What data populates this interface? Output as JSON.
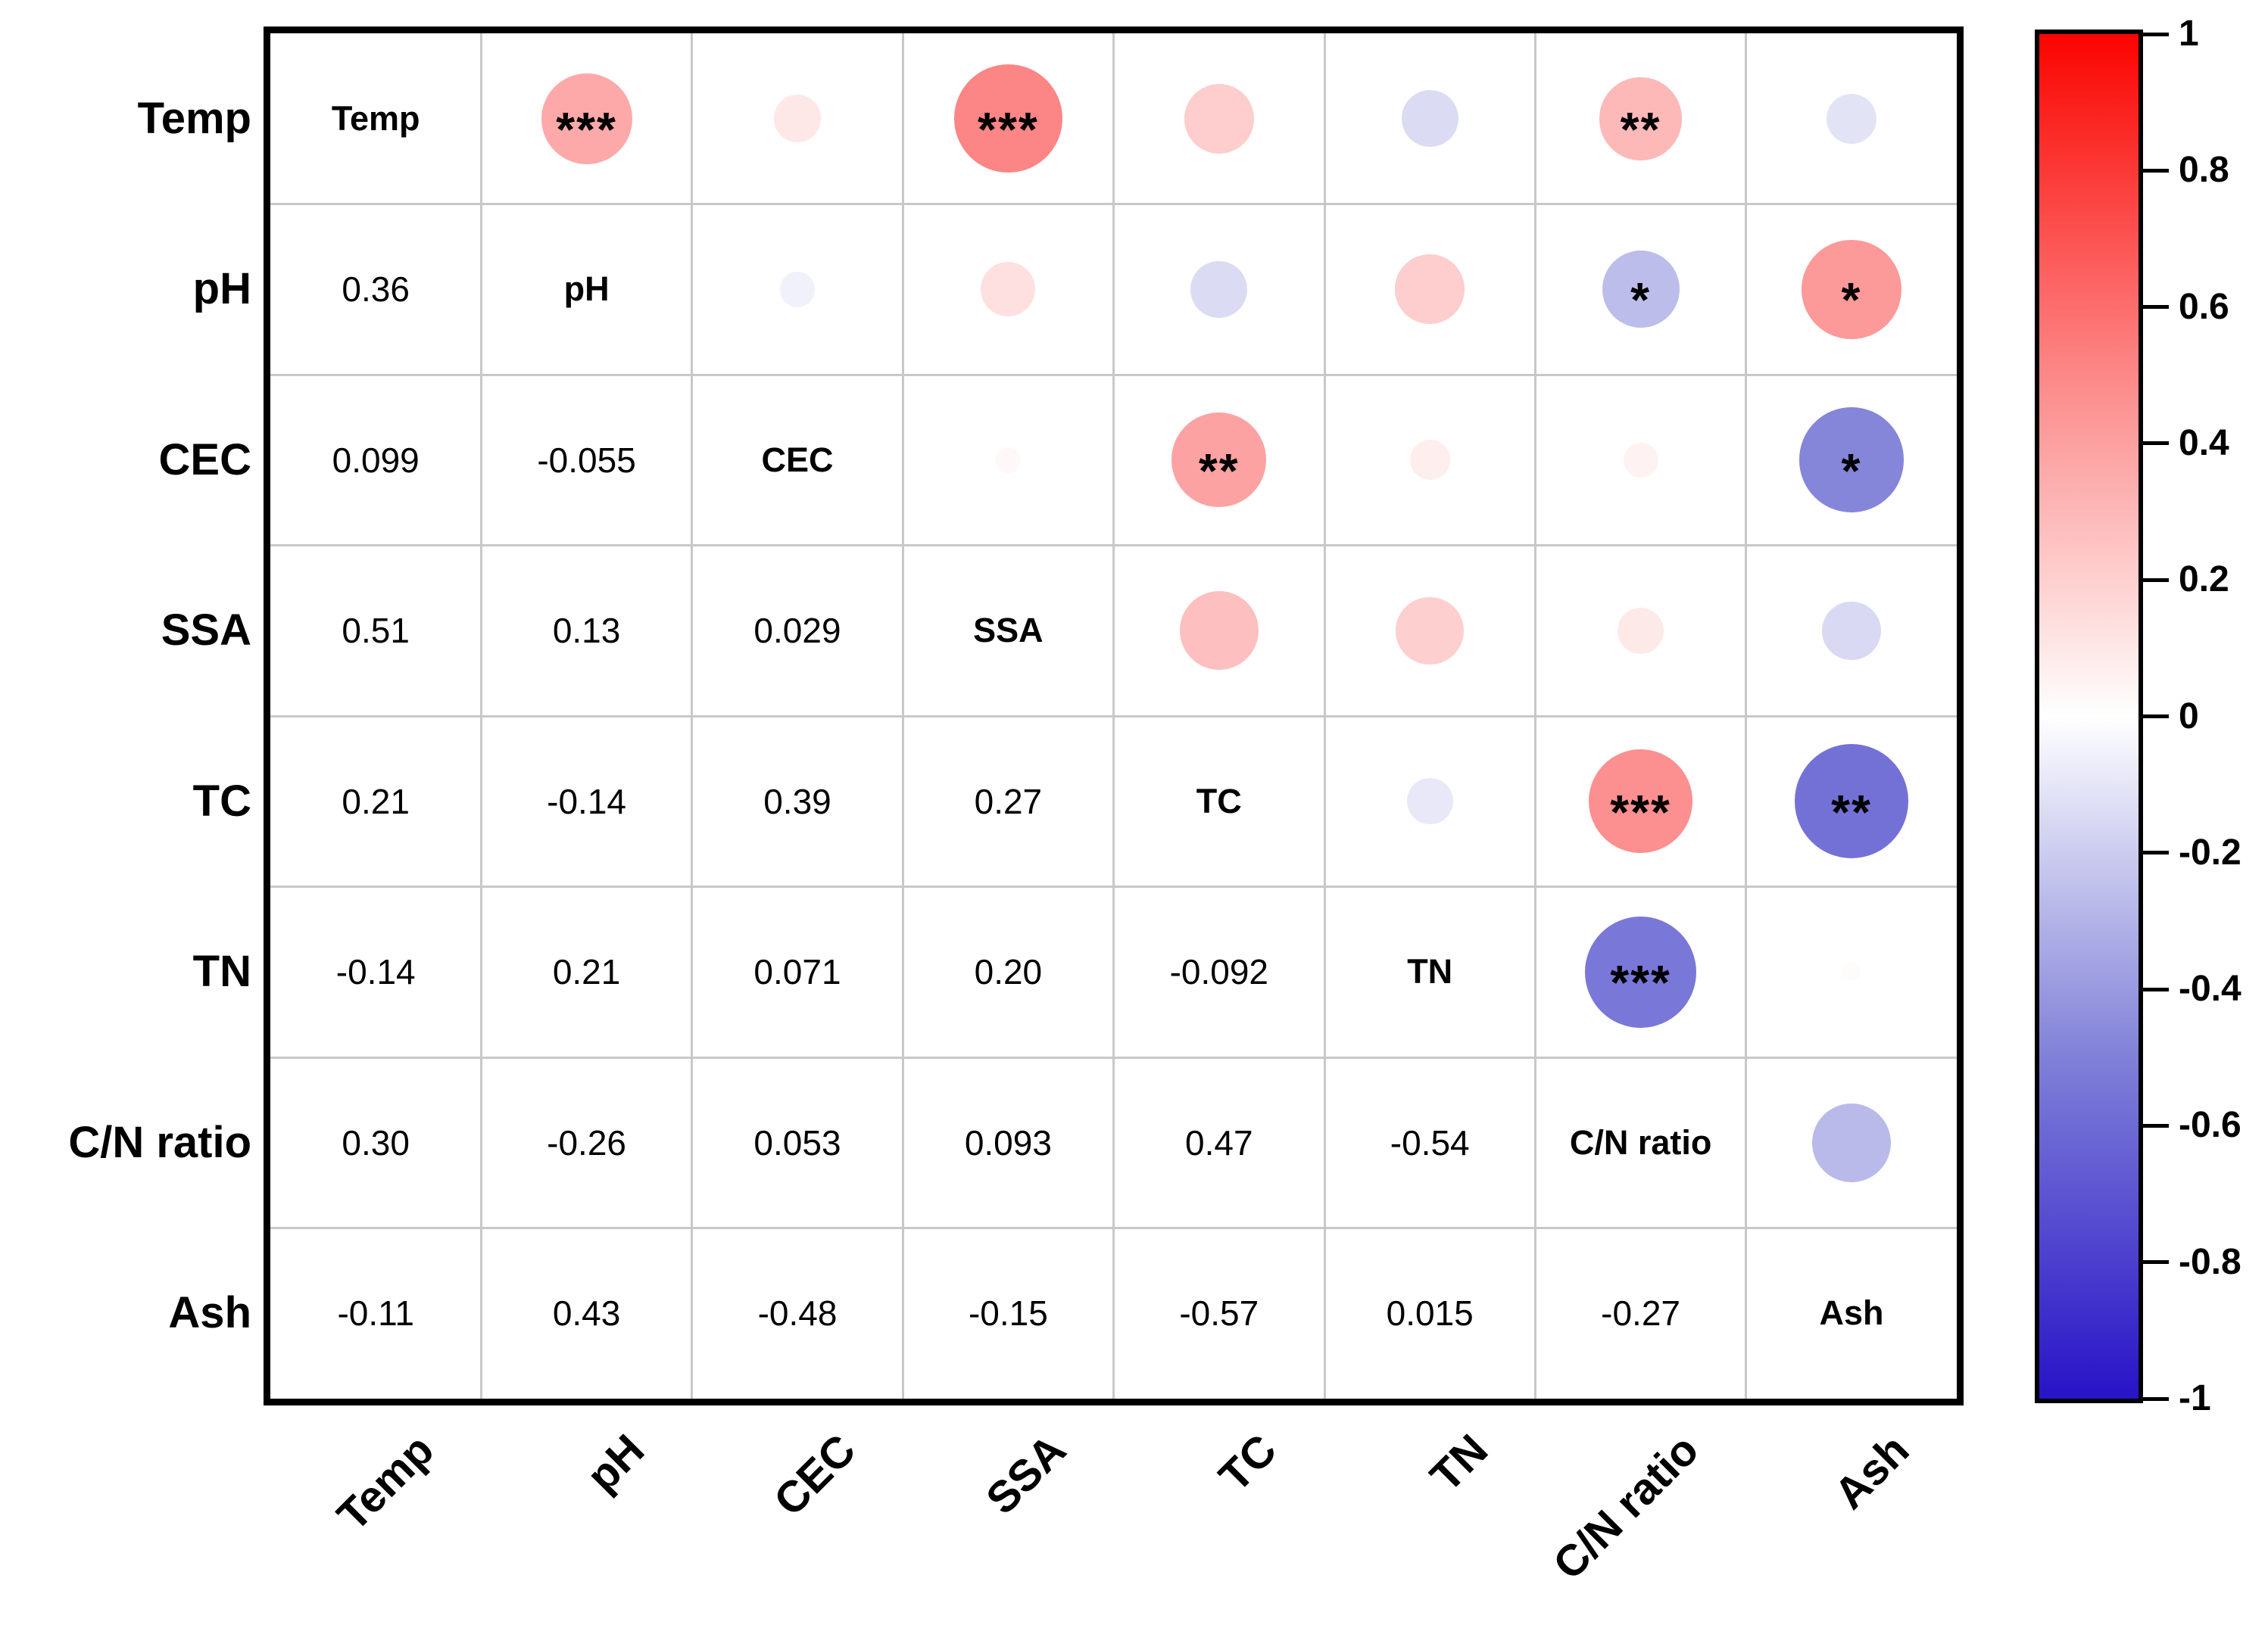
{
  "chart_data": {
    "type": "correlation-matrix",
    "title": "",
    "variables": [
      "Temp",
      "pH",
      "CEC",
      "SSA",
      "TC",
      "TN",
      "C/N ratio",
      "Ash"
    ],
    "lower_triangle_shows": "correlation coefficients",
    "upper_triangle_shows": "circles scaled and colored by correlation with significance stars",
    "pairs": [
      {
        "row": 1,
        "col": 0,
        "text": "0.36",
        "value": 0.36,
        "stars": "***"
      },
      {
        "row": 2,
        "col": 0,
        "text": "0.099",
        "value": 0.099,
        "stars": ""
      },
      {
        "row": 2,
        "col": 1,
        "text": "-0.055",
        "value": -0.055,
        "stars": ""
      },
      {
        "row": 3,
        "col": 0,
        "text": "0.51",
        "value": 0.51,
        "stars": "***"
      },
      {
        "row": 3,
        "col": 1,
        "text": "0.13",
        "value": 0.13,
        "stars": ""
      },
      {
        "row": 3,
        "col": 2,
        "text": "0.029",
        "value": 0.029,
        "stars": ""
      },
      {
        "row": 4,
        "col": 0,
        "text": "0.21",
        "value": 0.21,
        "stars": ""
      },
      {
        "row": 4,
        "col": 1,
        "text": "-0.14",
        "value": -0.14,
        "stars": ""
      },
      {
        "row": 4,
        "col": 2,
        "text": "0.39",
        "value": 0.39,
        "stars": "**"
      },
      {
        "row": 4,
        "col": 3,
        "text": "0.27",
        "value": 0.27,
        "stars": ""
      },
      {
        "row": 5,
        "col": 0,
        "text": "-0.14",
        "value": -0.14,
        "stars": ""
      },
      {
        "row": 5,
        "col": 1,
        "text": "0.21",
        "value": 0.21,
        "stars": ""
      },
      {
        "row": 5,
        "col": 2,
        "text": "0.071",
        "value": 0.071,
        "stars": ""
      },
      {
        "row": 5,
        "col": 3,
        "text": "0.20",
        "value": 0.2,
        "stars": ""
      },
      {
        "row": 5,
        "col": 4,
        "text": "-0.092",
        "value": -0.092,
        "stars": ""
      },
      {
        "row": 6,
        "col": 0,
        "text": "0.30",
        "value": 0.3,
        "stars": "**"
      },
      {
        "row": 6,
        "col": 1,
        "text": "-0.26",
        "value": -0.26,
        "stars": "*"
      },
      {
        "row": 6,
        "col": 2,
        "text": "0.053",
        "value": 0.053,
        "stars": ""
      },
      {
        "row": 6,
        "col": 3,
        "text": "0.093",
        "value": 0.093,
        "stars": ""
      },
      {
        "row": 6,
        "col": 4,
        "text": "0.47",
        "value": 0.47,
        "stars": "***"
      },
      {
        "row": 6,
        "col": 5,
        "text": "-0.54",
        "value": -0.54,
        "stars": "***"
      },
      {
        "row": 7,
        "col": 0,
        "text": "-0.11",
        "value": -0.11,
        "stars": ""
      },
      {
        "row": 7,
        "col": 1,
        "text": "0.43",
        "value": 0.43,
        "stars": "*"
      },
      {
        "row": 7,
        "col": 2,
        "text": "-0.48",
        "value": -0.48,
        "stars": "*"
      },
      {
        "row": 7,
        "col": 3,
        "text": "-0.15",
        "value": -0.15,
        "stars": ""
      },
      {
        "row": 7,
        "col": 4,
        "text": "-0.57",
        "value": -0.57,
        "stars": "**"
      },
      {
        "row": 7,
        "col": 5,
        "text": "0.015",
        "value": 0.015,
        "stars": ""
      },
      {
        "row": 7,
        "col": 6,
        "text": "-0.27",
        "value": -0.27,
        "stars": ""
      }
    ],
    "colorbar": {
      "range": [
        -1,
        1
      ],
      "ticks": [
        "1",
        "0.8",
        "0.6",
        "0.4",
        "0.2",
        "0",
        "-0.2",
        "-0.4",
        "-0.6",
        "-0.8",
        "-1"
      ],
      "legend_position": "right"
    },
    "color_scale": {
      "stops_positive": [
        "#ffffff",
        "#fc8888",
        "#fb0400"
      ],
      "stops_negative": [
        "#ffffff",
        "#8080d8",
        "#2813c7"
      ]
    },
    "layout_hints": {
      "grid": true,
      "x_tick_rotation": 45
    }
  }
}
